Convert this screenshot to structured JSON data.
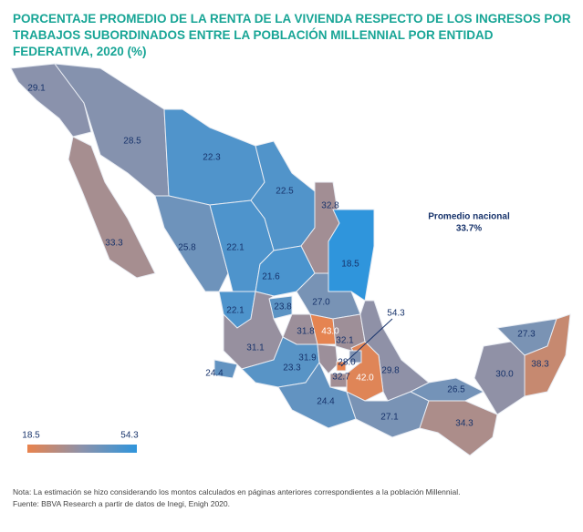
{
  "header": {
    "title_lines": [
      "PORCENTAJE PROMEDIO DE LA RENTA DE LA VIVIENDA RESPECTO DE LOS INGRESOS POR",
      "TRABAJOS SUBORDINADOS ENTRE LA POBLACIÓN MILLENNIAL POR ENTIDAD FEDERATIVA, 2020 (%)"
    ]
  },
  "map": {
    "type": "choropleth",
    "values": [
      29.1,
      28.5,
      33.3,
      22.3,
      22.5,
      32.8,
      18.5,
      25.8,
      22.1,
      21.6,
      27.0,
      22.1,
      23.8,
      31.1,
      31.8,
      43.0,
      32.1,
      24.4,
      23.3,
      31.9,
      29.8,
      42.0,
      24.4,
      27.1,
      26.5,
      34.3,
      30.0,
      27.3,
      38.3,
      28.0,
      32.7,
      54.3
    ],
    "value_labels": [
      "29.1",
      "28.5",
      "33.3",
      "22.3",
      "22.5",
      "32.8",
      "18.5",
      "25.8",
      "22.1",
      "21.6",
      "27.0",
      "22.1",
      "23.8",
      "31.1",
      "31.8",
      "43.0",
      "32.1",
      "24.4",
      "23.3",
      "31.9",
      "29.8",
      "42.0",
      "24.4",
      "27.1",
      "26.5",
      "34.3",
      "30.0",
      "27.3",
      "38.3",
      "28.0",
      "32.7",
      "54.3"
    ],
    "colors": [
      "#2f95dc",
      "#8b92ab",
      "#e9834d"
    ],
    "scale": {
      "min": 18.5,
      "max": 54.3
    },
    "national_average": {
      "title": "Promedio nacional",
      "text": "33.7%"
    }
  },
  "notes": [
    "Nota: La estimación se hizo considerando los montos calculados en páginas anteriores correspondientes a la población Millennial.",
    "Fuente: BBVA Research a partir de datos de Inegi, Enigh 2020."
  ]
}
